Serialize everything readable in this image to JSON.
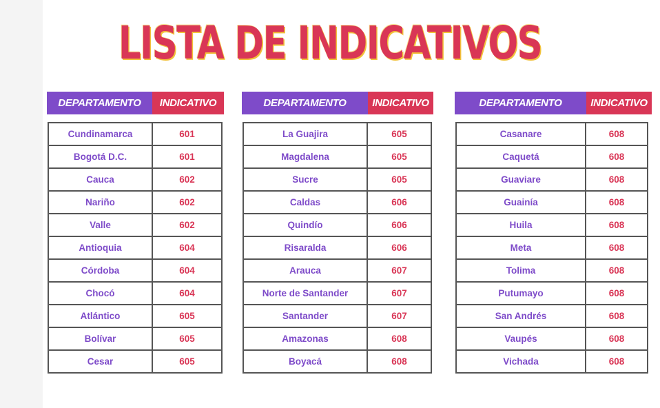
{
  "title": "LISTA DE INDICATIVOS",
  "colors": {
    "purple": "#7e4bc9",
    "red": "#d93656",
    "title_shadow": "#f2c23a"
  },
  "panels": [
    {
      "header_dep": "DEPARTAMENTO",
      "header_ind": "INDICATIVO",
      "rows": [
        {
          "dep": "Cundinamarca",
          "ind": "601"
        },
        {
          "dep": "Bogotá D.C.",
          "ind": "601"
        },
        {
          "dep": "Cauca",
          "ind": "602"
        },
        {
          "dep": "Nariño",
          "ind": "602"
        },
        {
          "dep": "Valle",
          "ind": "602"
        },
        {
          "dep": "Antioquia",
          "ind": "604"
        },
        {
          "dep": "Córdoba",
          "ind": "604"
        },
        {
          "dep": "Chocó",
          "ind": "604"
        },
        {
          "dep": "Atlántico",
          "ind": "605"
        },
        {
          "dep": "Bolívar",
          "ind": "605"
        },
        {
          "dep": "Cesar",
          "ind": "605"
        }
      ]
    },
    {
      "header_dep": "DEPARTAMENTO",
      "header_ind": "INDICATIVO",
      "rows": [
        {
          "dep": "La Guajira",
          "ind": "605"
        },
        {
          "dep": "Magdalena",
          "ind": "605"
        },
        {
          "dep": "Sucre",
          "ind": "605"
        },
        {
          "dep": "Caldas",
          "ind": "606"
        },
        {
          "dep": "Quindío",
          "ind": "606"
        },
        {
          "dep": "Risaralda",
          "ind": "606"
        },
        {
          "dep": "Arauca",
          "ind": "607"
        },
        {
          "dep": "Norte de Santander",
          "ind": "607"
        },
        {
          "dep": "Santander",
          "ind": "607"
        },
        {
          "dep": "Amazonas",
          "ind": "608"
        },
        {
          "dep": "Boyacá",
          "ind": "608"
        }
      ]
    },
    {
      "header_dep": "DEPARTAMENTO",
      "header_ind": "INDICATIVO",
      "rows": [
        {
          "dep": "Casanare",
          "ind": "608"
        },
        {
          "dep": "Caquetá",
          "ind": "608"
        },
        {
          "dep": "Guaviare",
          "ind": "608"
        },
        {
          "dep": "Guainía",
          "ind": "608"
        },
        {
          "dep": "Huila",
          "ind": "608"
        },
        {
          "dep": "Meta",
          "ind": "608"
        },
        {
          "dep": "Tolima",
          "ind": "608"
        },
        {
          "dep": "Putumayo",
          "ind": "608"
        },
        {
          "dep": "San Andrés",
          "ind": "608"
        },
        {
          "dep": "Vaupés",
          "ind": "608"
        },
        {
          "dep": "Vichada",
          "ind": "608"
        }
      ]
    }
  ]
}
